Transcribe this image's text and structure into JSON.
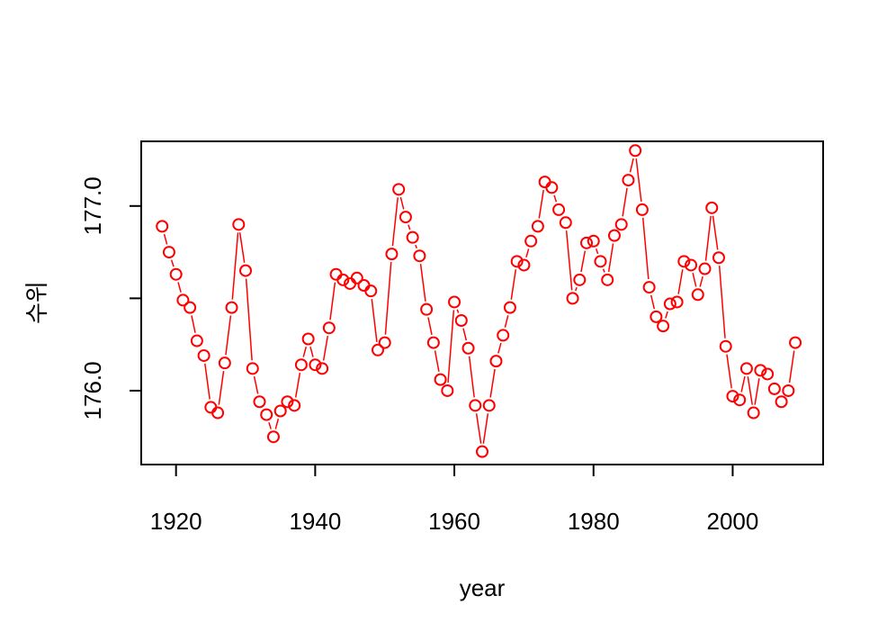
{
  "chart_data": {
    "type": "line",
    "title": "",
    "xlabel": "year",
    "ylabel": "수위",
    "xlim": [
      1915,
      2013
    ],
    "ylim": [
      175.6,
      177.35
    ],
    "x_ticks": [
      1920,
      1940,
      1960,
      1980,
      2000
    ],
    "x_tick_labels": [
      "1920",
      "1940",
      "1960",
      "1980",
      "2000"
    ],
    "y_ticks": [
      176.0,
      176.5,
      177.0
    ],
    "y_tick_labels": [
      "176.0",
      "",
      "177.0"
    ],
    "color": "#ff0000",
    "marker": "open-circle",
    "series": [
      {
        "x": [
          1918,
          1919,
          1920,
          1921,
          1922,
          1923,
          1924,
          1925,
          1926,
          1927,
          1928,
          1929,
          1930,
          1931,
          1932,
          1933,
          1934,
          1935,
          1936,
          1937,
          1938,
          1939,
          1940,
          1941,
          1942,
          1943,
          1944,
          1945,
          1946,
          1947,
          1948,
          1949,
          1950,
          1951,
          1952,
          1953,
          1954,
          1955,
          1956,
          1957,
          1958,
          1959,
          1960,
          1961,
          1962,
          1963,
          1964,
          1965,
          1966,
          1967,
          1968,
          1969,
          1970,
          1971,
          1972,
          1973,
          1974,
          1975,
          1976,
          1977,
          1978,
          1979,
          1980,
          1981,
          1982,
          1983,
          1984,
          1985,
          1986,
          1987,
          1988,
          1989,
          1990,
          1991,
          1992,
          1993,
          1994,
          1995,
          1996,
          1997,
          1998,
          1999,
          2000,
          2001,
          2002,
          2003,
          2004,
          2005,
          2006,
          2007,
          2008,
          2009
        ],
        "values": [
          176.89,
          176.75,
          176.63,
          176.49,
          176.45,
          176.27,
          176.19,
          175.91,
          175.88,
          176.15,
          176.45,
          176.9,
          176.65,
          176.12,
          175.94,
          175.87,
          175.75,
          175.89,
          175.94,
          175.92,
          176.14,
          176.28,
          176.14,
          176.12,
          176.34,
          176.63,
          176.6,
          176.58,
          176.61,
          176.57,
          176.54,
          176.22,
          176.26,
          176.74,
          177.09,
          176.94,
          176.83,
          176.73,
          176.44,
          176.26,
          176.06,
          176.0,
          176.48,
          176.38,
          176.23,
          175.92,
          175.67,
          175.92,
          176.16,
          176.3,
          176.45,
          176.7,
          176.68,
          176.81,
          176.89,
          177.13,
          177.1,
          176.98,
          176.91,
          176.5,
          176.6,
          176.8,
          176.81,
          176.7,
          176.6,
          176.84,
          176.9,
          177.14,
          177.3,
          176.98,
          176.56,
          176.4,
          176.35,
          176.47,
          176.48,
          176.7,
          176.68,
          176.52,
          176.66,
          176.99,
          176.72,
          176.24,
          175.97,
          175.95,
          176.12,
          175.88,
          176.11,
          176.09,
          176.01,
          175.94,
          176.0,
          176.26
        ]
      }
    ]
  }
}
